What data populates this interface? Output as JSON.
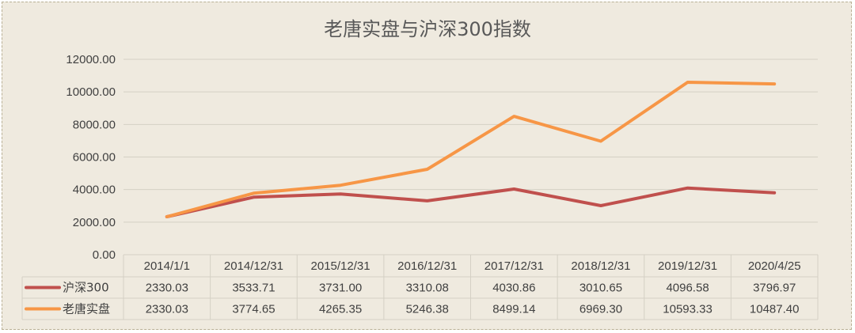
{
  "chart_data": {
    "type": "line",
    "title": "老唐实盘与沪深300指数",
    "categories": [
      "2014/1/1",
      "2014/12/31",
      "2015/12/31",
      "2016/12/31",
      "2017/12/31",
      "2018/12/31",
      "2019/12/31",
      "2020/4/25"
    ],
    "yticks": [
      "12000.00",
      "10000.00",
      "8000.00",
      "6000.00",
      "4000.00",
      "2000.00",
      "0.00"
    ],
    "ylim": [
      0,
      12000
    ],
    "grid": true,
    "legend_position": "bottom-table",
    "series": [
      {
        "name": "沪深300",
        "color": "#c0504d",
        "values": [
          2330.03,
          3533.71,
          3731.0,
          3310.08,
          4030.86,
          3010.65,
          4096.58,
          3796.97
        ],
        "labels": [
          "2330.03",
          "3533.71",
          "3731.00",
          "3310.08",
          "4030.86",
          "3010.65",
          "4096.58",
          "3796.97"
        ]
      },
      {
        "name": "老唐实盘",
        "color": "#f79646",
        "values": [
          2330.03,
          3774.65,
          4265.35,
          5246.38,
          8499.14,
          6969.3,
          10593.33,
          10487.4
        ],
        "labels": [
          "2330.03",
          "3774.65",
          "4265.35",
          "5246.38",
          "8499.14",
          "6969.30",
          "10593.33",
          "10487.40"
        ]
      }
    ]
  }
}
